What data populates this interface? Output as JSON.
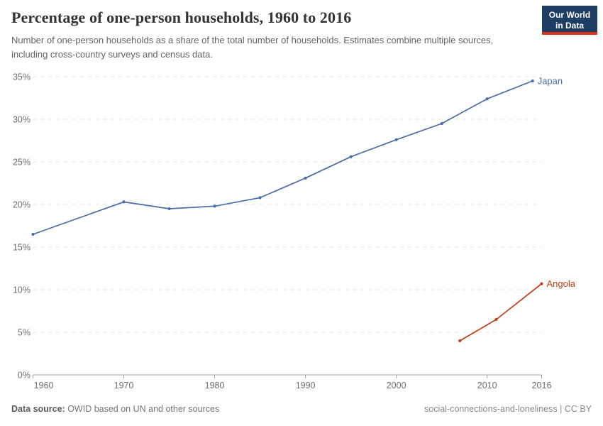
{
  "header": {
    "title": "Percentage of one-person households, 1960 to 2016",
    "subtitle": "Number of one-person households as a share of the total number of households. Estimates combine multiple sources, including cross-country surveys and census data.",
    "logo": {
      "line1": "Our World",
      "line2": "in Data",
      "bg_color": "#1d3d63",
      "stripe_color": "#dc3018"
    }
  },
  "chart_data": {
    "type": "line",
    "title": "Percentage of one-person households, 1960 to 2016",
    "xlabel": "",
    "ylabel": "",
    "xlim": [
      1960,
      2016
    ],
    "ylim": [
      0,
      35
    ],
    "x_ticks": [
      1960,
      1970,
      1980,
      1990,
      2000,
      2010,
      2016
    ],
    "y_ticks": [
      "0%",
      "5%",
      "10%",
      "15%",
      "20%",
      "25%",
      "30%",
      "35%"
    ],
    "grid": "horizontal-dashed",
    "legend_position": "end-of-line",
    "colors": {
      "grid": "#e0e0e0",
      "axis": "#a0a0a0",
      "tick_text": "#6e6e6e"
    },
    "series": [
      {
        "name": "Japan",
        "color": "#4a6da7",
        "x": [
          1960,
          1970,
          1975,
          1980,
          1985,
          1990,
          1995,
          2000,
          2005,
          2010,
          2015
        ],
        "y": [
          16.5,
          20.3,
          19.5,
          19.8,
          20.8,
          23.1,
          25.6,
          27.6,
          29.5,
          32.4,
          34.5
        ]
      },
      {
        "name": "Angola",
        "color": "#be4018",
        "x": [
          2007,
          2011,
          2016
        ],
        "y": [
          4.0,
          6.5,
          10.7
        ]
      }
    ]
  },
  "footer": {
    "source_label": "Data source:",
    "source_text": " OWID based on UN and other sources",
    "attribution": "social-connections-and-loneliness | CC BY"
  }
}
